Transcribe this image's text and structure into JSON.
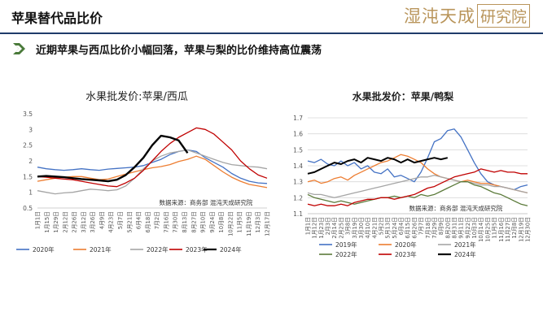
{
  "header": {
    "title": "苹果替代品比价",
    "logo_text": "湿沌天成",
    "logo_box": "研究院"
  },
  "subtitle": "近期苹果与西瓜比价小幅回落，苹果与梨的比价维持高位震荡",
  "colors": {
    "brand_navy": "#1f3b6a",
    "brand_gold": "#b9955b",
    "chevron_green": "#4a7a3a"
  },
  "chart_data": [
    {
      "type": "line",
      "title": "水果批发价:苹果/西瓜",
      "source_note": "数据来源：商务部  混沌天成研究院",
      "ylim": [
        0.5,
        3.5
      ],
      "yticks": [
        "0.5",
        "1",
        "1.5",
        "2",
        "2.5",
        "3",
        "3.5"
      ],
      "grid": false,
      "legend_position": "bottom",
      "x": [
        "1月1日",
        "1月15日",
        "1月29日",
        "2月12日",
        "2月26日",
        "3月12日",
        "3月26日",
        "4月9日",
        "4月23日",
        "5月7日",
        "5月21日",
        "6月4日",
        "6月18日",
        "7月2日",
        "7月16日",
        "7月30日",
        "8月13日",
        "8月27日",
        "9月10日",
        "9月24日",
        "10月8日",
        "10月22日",
        "11月5日",
        "11月19日",
        "12月3日",
        "12月17日",
        "12月31日"
      ],
      "xtick_labels": [
        "1月1日",
        "1月15日",
        "1月29日",
        "2月12日",
        "2月26日",
        "3月12日",
        "3月26日",
        "4月9日",
        "4月23日",
        "5月7日",
        "5月21日",
        "6月4日",
        "6月18日",
        "7月2日",
        "7月16日",
        "7月30日",
        "8月13日",
        "8月27日",
        "9月10日",
        "9月24日",
        "10月8日",
        "10月22日",
        "11月5日",
        "11月19日",
        "12月3日",
        "12月17日"
      ],
      "series": [
        {
          "name": "2020年",
          "color": "#4472c4",
          "values": [
            1.8,
            1.75,
            1.72,
            1.7,
            1.72,
            1.75,
            1.72,
            1.7,
            1.74,
            1.76,
            1.78,
            1.8,
            1.85,
            1.95,
            2.05,
            2.2,
            2.3,
            2.35,
            2.3,
            2.1,
            1.95,
            1.8,
            1.6,
            1.45,
            1.35,
            1.3,
            1.28
          ]
        },
        {
          "name": "2021年",
          "color": "#ed7d31",
          "values": [
            1.35,
            1.4,
            1.45,
            1.48,
            1.5,
            1.5,
            1.45,
            1.4,
            1.42,
            1.5,
            1.58,
            1.65,
            1.72,
            1.78,
            1.82,
            1.88,
            1.98,
            2.05,
            2.15,
            2.05,
            1.85,
            1.65,
            1.48,
            1.35,
            1.25,
            1.2,
            1.15
          ]
        },
        {
          "name": "2022年",
          "color": "#a5a5a5",
          "values": [
            1.05,
            1.0,
            0.95,
            0.98,
            1.0,
            1.05,
            1.1,
            1.08,
            1.05,
            1.08,
            1.2,
            1.45,
            1.75,
            2.0,
            2.15,
            2.25,
            2.3,
            2.35,
            2.25,
            2.15,
            2.05,
            1.95,
            1.88,
            1.85,
            1.82,
            1.8,
            1.75
          ]
        },
        {
          "name": "2023年",
          "color": "#c00000",
          "values": [
            1.5,
            1.48,
            1.45,
            1.42,
            1.4,
            1.35,
            1.3,
            1.25,
            1.2,
            1.18,
            1.3,
            1.45,
            1.7,
            2.0,
            2.3,
            2.55,
            2.75,
            2.9,
            3.05,
            3.0,
            2.85,
            2.6,
            2.35,
            2.0,
            1.75,
            1.55,
            1.45
          ]
        },
        {
          "name": "2024年",
          "color": "#000000",
          "values": [
            1.5,
            1.52,
            1.5,
            1.48,
            1.45,
            1.42,
            1.4,
            1.38,
            1.35,
            1.4,
            1.55,
            1.8,
            2.1,
            2.5,
            2.8,
            2.75,
            2.65,
            2.25,
            null,
            null,
            null,
            null,
            null,
            null,
            null,
            null,
            null
          ]
        }
      ]
    },
    {
      "type": "line",
      "title": "水果批发价：苹果/鸭梨",
      "source_note": "数据来源：商务部  混沌天成研究院",
      "ylim": [
        1.1,
        1.7
      ],
      "yticks": [
        "1.1",
        "1.2",
        "1.3",
        "1.4",
        "1.5",
        "1.6",
        "1.7"
      ],
      "grid": true,
      "legend_position": "bottom",
      "x": [
        "1月1日",
        "1月12日",
        "1月23日",
        "2月3日",
        "2月14日",
        "2月25日",
        "3月8日",
        "3月19日",
        "3月30日",
        "4月10日",
        "4月21日",
        "5月2日",
        "5月13日",
        "5月24日",
        "6月4日",
        "6月15日",
        "6月26日",
        "7月7日",
        "7月18日",
        "7月29日",
        "8月9日",
        "8月20日",
        "8月31日",
        "9月11日",
        "9月22日",
        "10月3日",
        "10月14日",
        "10月25日",
        "11月5日",
        "11月16日",
        "11月27日",
        "12月8日",
        "12月19日",
        "12月30日"
      ],
      "xtick_labels": [
        "1月1日",
        "1月12日",
        "1月23日",
        "2月3日",
        "2月14日",
        "2月25日",
        "3月8日",
        "3月19日",
        "3月30日",
        "4月10日",
        "4月21日",
        "5月2日",
        "5月13日",
        "5月24日",
        "6月4日",
        "6月15日",
        "6月26日",
        "7月7日",
        "7月18日",
        "7月29日",
        "8月9日",
        "8月20日",
        "8月31日",
        "9月11日",
        "9月22日",
        "10月3日",
        "10月14日",
        "10月25日",
        "11月5日",
        "11月16日",
        "11月27日",
        "12月8日",
        "12月19日",
        "12月30日"
      ],
      "series": [
        {
          "name": "2019年",
          "color": "#4472c4",
          "values": [
            1.43,
            1.42,
            1.44,
            1.41,
            1.4,
            1.43,
            1.4,
            1.42,
            1.38,
            1.4,
            1.36,
            1.35,
            1.38,
            1.33,
            1.34,
            1.32,
            1.3,
            1.36,
            1.45,
            1.55,
            1.57,
            1.62,
            1.63,
            1.58,
            1.5,
            1.42,
            1.35,
            1.3,
            1.28,
            1.27,
            1.26,
            1.25,
            1.27,
            1.28
          ]
        },
        {
          "name": "2020年",
          "color": "#ed7d31",
          "values": [
            1.3,
            1.31,
            1.29,
            1.3,
            1.32,
            1.33,
            1.31,
            1.34,
            1.36,
            1.38,
            1.4,
            1.42,
            1.43,
            1.45,
            1.47,
            1.46,
            1.44,
            1.42,
            1.38,
            1.35,
            1.33,
            1.32,
            1.31,
            1.3,
            1.31,
            1.3,
            1.29,
            1.29,
            1.28,
            1.27,
            1.26,
            1.25,
            1.24,
            1.23
          ]
        },
        {
          "name": "2021年",
          "color": "#a5a5a5",
          "values": [
            1.23,
            1.22,
            1.22,
            1.21,
            1.2,
            1.21,
            1.22,
            1.23,
            1.24,
            1.25,
            1.26,
            1.27,
            1.28,
            1.29,
            1.3,
            1.31,
            1.32,
            1.33,
            1.33,
            1.34,
            1.33,
            1.32,
            1.31,
            1.3,
            1.3,
            1.29,
            1.28,
            1.28,
            1.27,
            1.27,
            1.26,
            1.25,
            1.24,
            1.23
          ]
        },
        {
          "name": "2022年",
          "color": "#5b7a3a",
          "values": [
            1.22,
            1.2,
            1.19,
            1.18,
            1.17,
            1.18,
            1.17,
            1.16,
            1.17,
            1.18,
            1.19,
            1.2,
            1.2,
            1.21,
            1.2,
            1.21,
            1.2,
            1.22,
            1.21,
            1.22,
            1.24,
            1.26,
            1.28,
            1.3,
            1.3,
            1.28,
            1.27,
            1.25,
            1.23,
            1.22,
            1.2,
            1.18,
            1.16,
            1.15
          ]
        },
        {
          "name": "2023年",
          "color": "#c00000",
          "values": [
            1.16,
            1.15,
            1.16,
            1.15,
            1.15,
            1.16,
            1.15,
            1.17,
            1.18,
            1.19,
            1.19,
            1.2,
            1.2,
            1.19,
            1.2,
            1.21,
            1.22,
            1.24,
            1.26,
            1.27,
            1.29,
            1.31,
            1.33,
            1.34,
            1.35,
            1.36,
            1.38,
            1.37,
            1.36,
            1.37,
            1.36,
            1.36,
            1.35,
            1.35
          ]
        },
        {
          "name": "2024年",
          "color": "#000000",
          "values": [
            1.35,
            1.36,
            1.38,
            1.4,
            1.42,
            1.41,
            1.43,
            1.44,
            1.42,
            1.45,
            1.44,
            1.43,
            1.45,
            1.44,
            1.42,
            1.44,
            1.42,
            1.43,
            1.44,
            1.45,
            1.44,
            1.45,
            null,
            null,
            null,
            null,
            null,
            null,
            null,
            null,
            null,
            null,
            null,
            null
          ]
        }
      ]
    }
  ]
}
